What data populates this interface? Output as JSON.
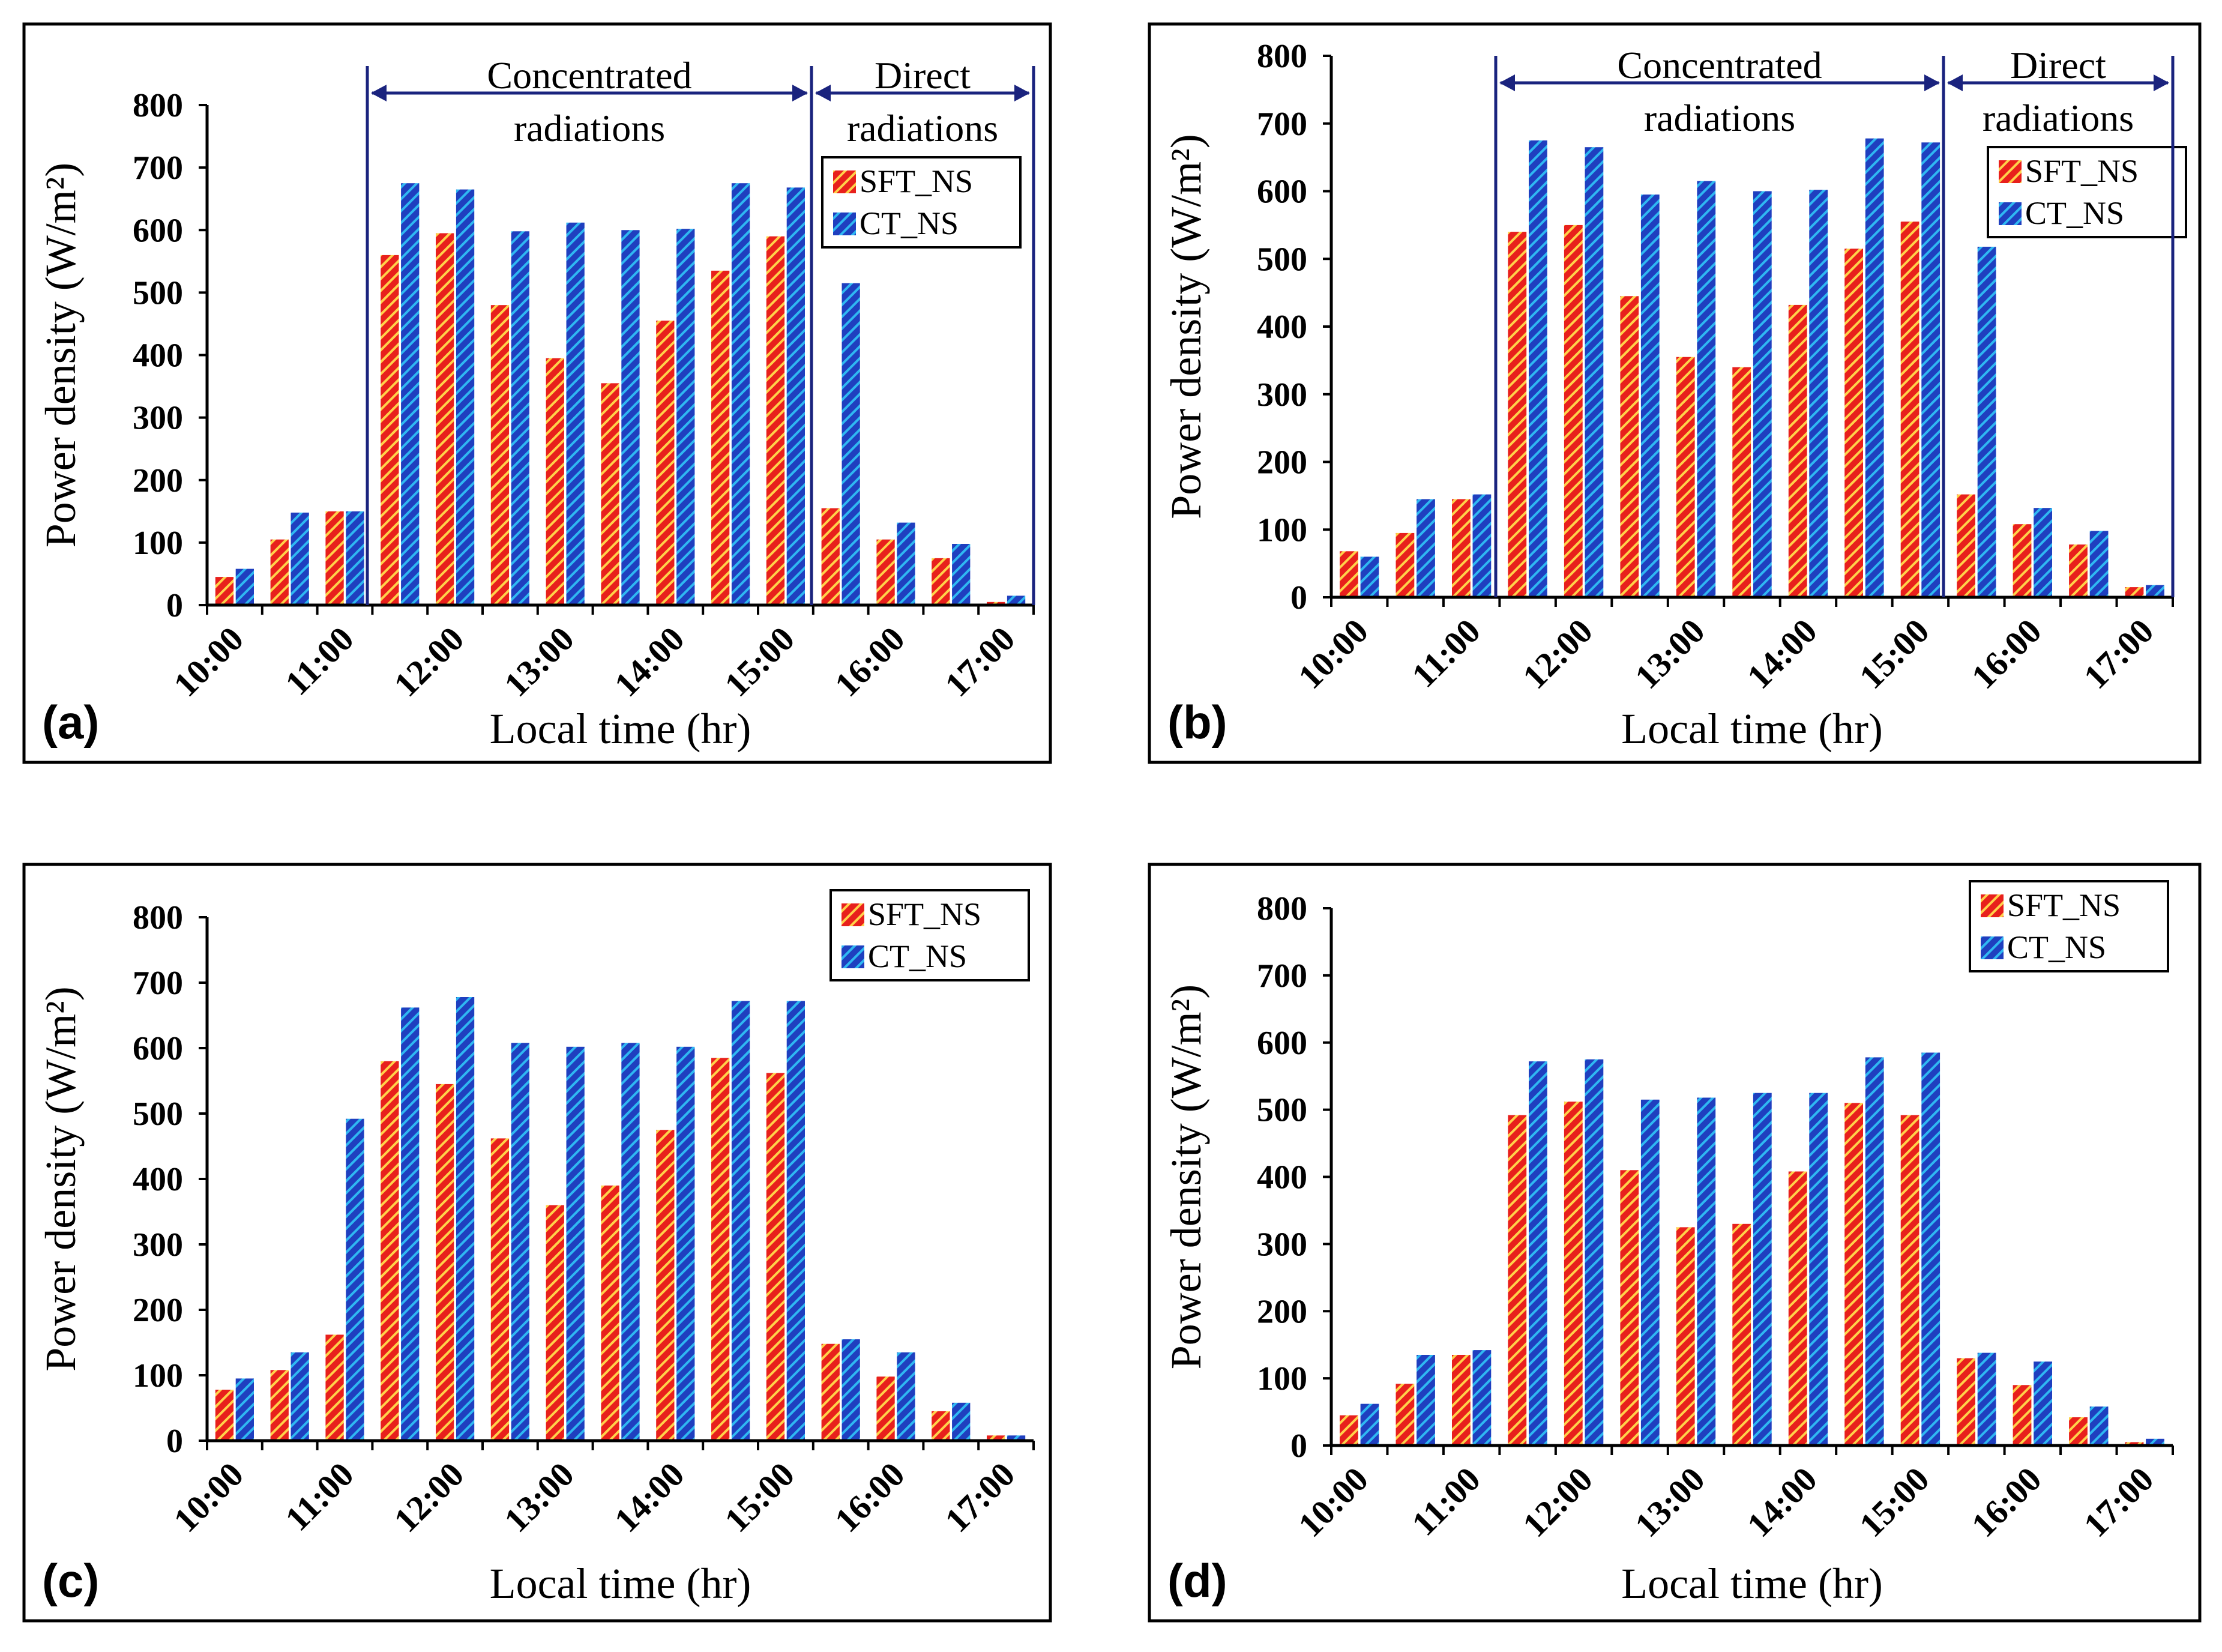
{
  "figure": {
    "series_names": [
      "SFT_NS",
      "CT_NS"
    ],
    "series_colors": [
      "#e8201c",
      "#1f3fbf"
    ],
    "stripe_colors": [
      "#ffd24a",
      "#2fb8f2"
    ],
    "frame_color": "#1a237e"
  },
  "chart_data": [
    {
      "panel": "(a)",
      "type": "bar",
      "categories": [
        "10:00",
        "10:30",
        "11:00",
        "11:30",
        "12:00",
        "12:30",
        "13:00",
        "13:30",
        "14:00",
        "14:30",
        "15:00",
        "15:30",
        "16:00",
        "16:30",
        "17:00"
      ],
      "tick_labels": [
        "10:00",
        "11:00",
        "12:00",
        "13:00",
        "14:00",
        "15:00",
        "16:00",
        "17:00"
      ],
      "series": [
        {
          "name": "SFT_NS",
          "values": [
            45,
            105,
            150,
            560,
            595,
            480,
            395,
            355,
            455,
            535,
            590,
            155,
            105,
            75,
            5
          ]
        },
        {
          "name": "CT_NS",
          "values": [
            58,
            148,
            150,
            675,
            665,
            598,
            612,
            600,
            602,
            675,
            668,
            515,
            132,
            98,
            15
          ]
        }
      ],
      "xlabel": "Local time (hr)",
      "ylabel": "Power density (W/m²)",
      "ylim": [
        0,
        800
      ],
      "yticks": [
        0,
        100,
        200,
        300,
        400,
        500,
        600,
        700,
        800
      ],
      "regions": [
        {
          "label_line1": "Concentrated",
          "label_line2": "radiations"
        },
        {
          "label_line1": "Direct",
          "label_line2": "radiations"
        }
      ],
      "legend": "top-right"
    },
    {
      "panel": "(b)",
      "type": "bar",
      "categories": [
        "10:00",
        "10:30",
        "11:00",
        "11:30",
        "12:00",
        "12:30",
        "13:00",
        "13:30",
        "14:00",
        "14:30",
        "15:00",
        "15:30",
        "16:00",
        "16:30",
        "17:00"
      ],
      "tick_labels": [
        "10:00",
        "11:00",
        "12:00",
        "13:00",
        "14:00",
        "15:00",
        "16:00",
        "17:00"
      ],
      "series": [
        {
          "name": "SFT_NS",
          "values": [
            68,
            95,
            145,
            540,
            550,
            445,
            355,
            340,
            432,
            515,
            555,
            152,
            108,
            78,
            15
          ]
        },
        {
          "name": "CT_NS",
          "values": [
            60,
            145,
            152,
            675,
            665,
            595,
            615,
            600,
            602,
            678,
            672,
            518,
            132,
            98,
            18
          ]
        }
      ],
      "xlabel": "Local time (hr)",
      "ylabel": "Power density (W/m²)",
      "ylim": [
        0,
        800
      ],
      "yticks": [
        0,
        100,
        200,
        300,
        400,
        500,
        600,
        700,
        800
      ],
      "regions": [
        {
          "label_line1": "Concentrated",
          "label_line2": "radiations"
        },
        {
          "label_line1": "Direct",
          "label_line2": "radiations"
        }
      ],
      "legend": "top-right"
    },
    {
      "panel": "(c)",
      "type": "bar",
      "categories": [
        "10:00",
        "10:30",
        "11:00",
        "11:30",
        "12:00",
        "12:30",
        "13:00",
        "13:30",
        "14:00",
        "14:30",
        "15:00",
        "15:30",
        "16:00",
        "16:30",
        "17:00"
      ],
      "tick_labels": [
        "10:00",
        "11:00",
        "12:00",
        "13:00",
        "14:00",
        "15:00",
        "16:00",
        "17:00"
      ],
      "series": [
        {
          "name": "SFT_NS",
          "values": [
            78,
            108,
            162,
            580,
            545,
            462,
            360,
            390,
            475,
            585,
            562,
            148,
            98,
            45,
            8
          ]
        },
        {
          "name": "CT_NS",
          "values": [
            95,
            135,
            492,
            662,
            678,
            608,
            602,
            608,
            602,
            672,
            672,
            155,
            135,
            58,
            8
          ]
        }
      ],
      "xlabel": "Local time (hr)",
      "ylabel": "Power density (W/m²)",
      "ylim": [
        0,
        800
      ],
      "yticks": [
        0,
        100,
        200,
        300,
        400,
        500,
        600,
        700,
        800
      ],
      "regions": [],
      "legend": "top-right"
    },
    {
      "panel": "(d)",
      "type": "bar",
      "categories": [
        "10:00",
        "10:30",
        "11:00",
        "11:30",
        "12:00",
        "12:30",
        "13:00",
        "13:30",
        "14:00",
        "14:30",
        "15:00",
        "15:30",
        "16:00",
        "16:30",
        "17:00"
      ],
      "tick_labels": [
        "10:00",
        "11:00",
        "12:00",
        "13:00",
        "14:00",
        "15:00",
        "16:00",
        "17:00"
      ],
      "series": [
        {
          "name": "SFT_NS",
          "values": [
            45,
            92,
            135,
            492,
            512,
            410,
            325,
            330,
            408,
            510,
            492,
            130,
            90,
            42,
            5
          ]
        },
        {
          "name": "CT_NS",
          "values": [
            62,
            135,
            142,
            572,
            575,
            515,
            518,
            525,
            525,
            578,
            585,
            138,
            125,
            58,
            10
          ]
        }
      ],
      "xlabel": "Local time (hr)",
      "ylabel": "Power density (W/m²)",
      "ylim": [
        0,
        800
      ],
      "yticks": [
        0,
        100,
        200,
        300,
        400,
        500,
        600,
        700,
        800
      ],
      "regions": [],
      "legend": "top-right"
    }
  ]
}
